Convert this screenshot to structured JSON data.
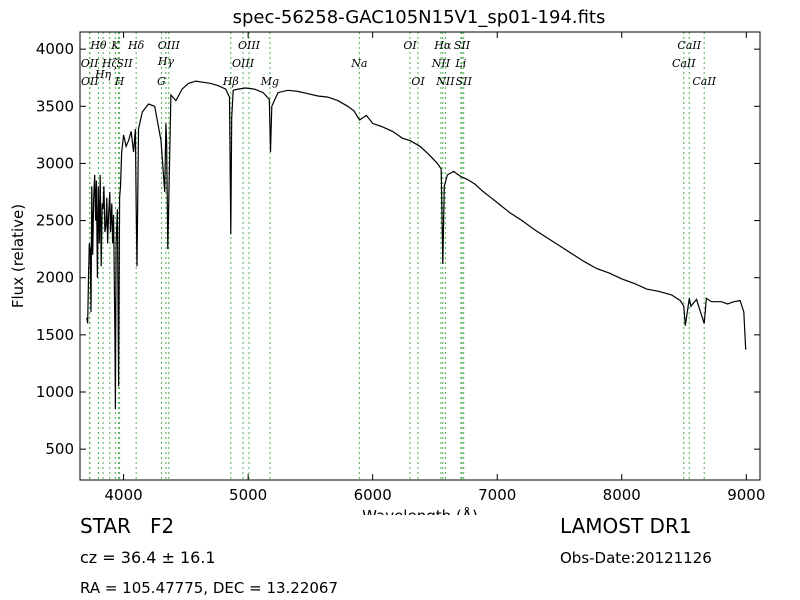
{
  "object": {
    "type": "STAR",
    "subclass": "F2"
  },
  "survey": "LAMOST DR1",
  "redshift": {
    "prefix": "cz = ",
    "value": "36.4",
    "pm": " ± ",
    "error": "16.1"
  },
  "obs_date": "Obs-Date:20121126",
  "coords": "RA = 105.47775, DEC = 13.22067",
  "chart_data": {
    "type": "line",
    "title": "spec-56258-GAC105N15V1_sp01-194.fits",
    "xlabel": "Wavelength (Å)",
    "ylabel": "Flux (relative)",
    "xlim": [
      3650,
      9110
    ],
    "ylim": [
      230,
      4150
    ],
    "xticks": [
      4000,
      5000,
      6000,
      7000,
      8000,
      9000
    ],
    "yticks": [
      500,
      1000,
      1500,
      2000,
      2500,
      3000,
      3500,
      4000
    ],
    "line_color": "#000000",
    "marker_color": "#4caf50",
    "grid": false,
    "spectrum": {
      "x": [
        3705,
        3712,
        3718,
        3725,
        3732,
        3738,
        3745,
        3752,
        3760,
        3768,
        3775,
        3782,
        3790,
        3797,
        3805,
        3812,
        3820,
        3828,
        3835,
        3842,
        3850,
        3858,
        3865,
        3872,
        3880,
        3889,
        3895,
        3905,
        3912,
        3920,
        3930,
        3934,
        3940,
        3950,
        3960,
        3968,
        3975,
        3985,
        4000,
        4020,
        4040,
        4060,
        4080,
        4095,
        4101,
        4108,
        4120,
        4150,
        4200,
        4250,
        4300,
        4330,
        4340,
        4345,
        4355,
        4380,
        4420,
        4470,
        4520,
        4580,
        4640,
        4700,
        4760,
        4820,
        4850,
        4861,
        4868,
        4880,
        4920,
        4980,
        5050,
        5120,
        5170,
        5180,
        5190,
        5240,
        5320,
        5400,
        5480,
        5560,
        5640,
        5720,
        5800,
        5850,
        5895,
        5950,
        6000,
        6080,
        6160,
        6240,
        6300,
        6380,
        6450,
        6520,
        6550,
        6563,
        6575,
        6600,
        6650,
        6700,
        6760,
        6820,
        6880,
        6950,
        7020,
        7100,
        7200,
        7300,
        7400,
        7500,
        7600,
        7700,
        7800,
        7900,
        8000,
        8100,
        8200,
        8300,
        8400,
        8470,
        8498,
        8510,
        8542,
        8555,
        8600,
        8662,
        8680,
        8720,
        8800,
        8850,
        8900,
        8950,
        8980,
        8995
      ],
      "y": [
        1650,
        1600,
        2000,
        2300,
        2250,
        1700,
        2800,
        2200,
        2700,
        2900,
        2500,
        2850,
        2000,
        2800,
        2300,
        2900,
        2100,
        2650,
        2600,
        2800,
        2400,
        2450,
        2700,
        2300,
        2550,
        2750,
        2400,
        2650,
        2300,
        2550,
        1500,
        850,
        2300,
        2600,
        1050,
        2700,
        2800,
        3100,
        3250,
        3150,
        3200,
        3280,
        3100,
        3300,
        2600,
        2100,
        3300,
        3450,
        3520,
        3500,
        3200,
        2750,
        3350,
        3200,
        2250,
        3600,
        3550,
        3650,
        3700,
        3720,
        3710,
        3700,
        3680,
        3650,
        3580,
        2380,
        3400,
        3640,
        3650,
        3660,
        3650,
        3620,
        3560,
        3100,
        3500,
        3620,
        3640,
        3630,
        3610,
        3590,
        3580,
        3550,
        3500,
        3460,
        3380,
        3420,
        3350,
        3320,
        3280,
        3220,
        3200,
        3150,
        3080,
        3000,
        2950,
        2120,
        2800,
        2900,
        2930,
        2890,
        2860,
        2820,
        2760,
        2700,
        2640,
        2570,
        2500,
        2420,
        2350,
        2280,
        2210,
        2140,
        2080,
        2040,
        1990,
        1950,
        1900,
        1880,
        1850,
        1800,
        1750,
        1580,
        1820,
        1750,
        1810,
        1600,
        1820,
        1790,
        1790,
        1770,
        1790,
        1800,
        1700,
        1370
      ]
    },
    "lines": [
      {
        "label": "OII",
        "x": 3727,
        "row": 1,
        "align": "center"
      },
      {
        "label": "OII",
        "x": 3729,
        "row": 2,
        "align": "center"
      },
      {
        "label": "Hθ",
        "x": 3798,
        "row": 0,
        "align": "center"
      },
      {
        "label": "Hη",
        "x": 3835,
        "row": 1.6,
        "align": "center"
      },
      {
        "label": "Hζ",
        "x": 3889,
        "row": 1,
        "align": "center"
      },
      {
        "label": "K",
        "x": 3934,
        "row": 0,
        "align": "center"
      },
      {
        "label": "SII",
        "x": 3960,
        "row": 1,
        "align": "right"
      },
      {
        "label": "H",
        "x": 3968,
        "row": 2,
        "align": "center"
      },
      {
        "label": "Hδ",
        "x": 4101,
        "row": 0,
        "align": "center"
      },
      {
        "label": "OIII",
        "x": 4363,
        "row": 0,
        "align": "center"
      },
      {
        "label": "Hγ",
        "x": 4340,
        "row": 0.9,
        "align": "center"
      },
      {
        "label": "G",
        "x": 4304,
        "row": 2,
        "align": "center"
      },
      {
        "label": "Hβ",
        "x": 4861,
        "row": 2,
        "align": "center"
      },
      {
        "label": "OIII",
        "x": 4959,
        "row": 1,
        "align": "center"
      },
      {
        "label": "OIII",
        "x": 5007,
        "row": 0,
        "align": "center"
      },
      {
        "label": "Mg",
        "x": 5175,
        "row": 2,
        "align": "center"
      },
      {
        "label": "Na",
        "x": 5893,
        "row": 1,
        "align": "center"
      },
      {
        "label": "OI",
        "x": 6300,
        "row": 0,
        "align": "center"
      },
      {
        "label": "OI",
        "x": 6364,
        "row": 2,
        "align": "center"
      },
      {
        "label": "NII",
        "x": 6548,
        "row": 1,
        "align": "center"
      },
      {
        "label": "NII",
        "x": 6584,
        "row": 2,
        "align": "center"
      },
      {
        "label": "Hα",
        "x": 6563,
        "row": 0,
        "align": "center"
      },
      {
        "label": "Li",
        "x": 6708,
        "row": 1,
        "align": "center"
      },
      {
        "label": "SII",
        "x": 6717,
        "row": 0,
        "align": "center"
      },
      {
        "label": "SII",
        "x": 6731,
        "row": 2,
        "align": "center"
      },
      {
        "label": "CaII",
        "x": 8498,
        "row": 1,
        "align": "center"
      },
      {
        "label": "CaII",
        "x": 8542,
        "row": 0,
        "align": "center"
      },
      {
        "label": "CaII",
        "x": 8662,
        "row": 2,
        "align": "center"
      }
    ]
  }
}
